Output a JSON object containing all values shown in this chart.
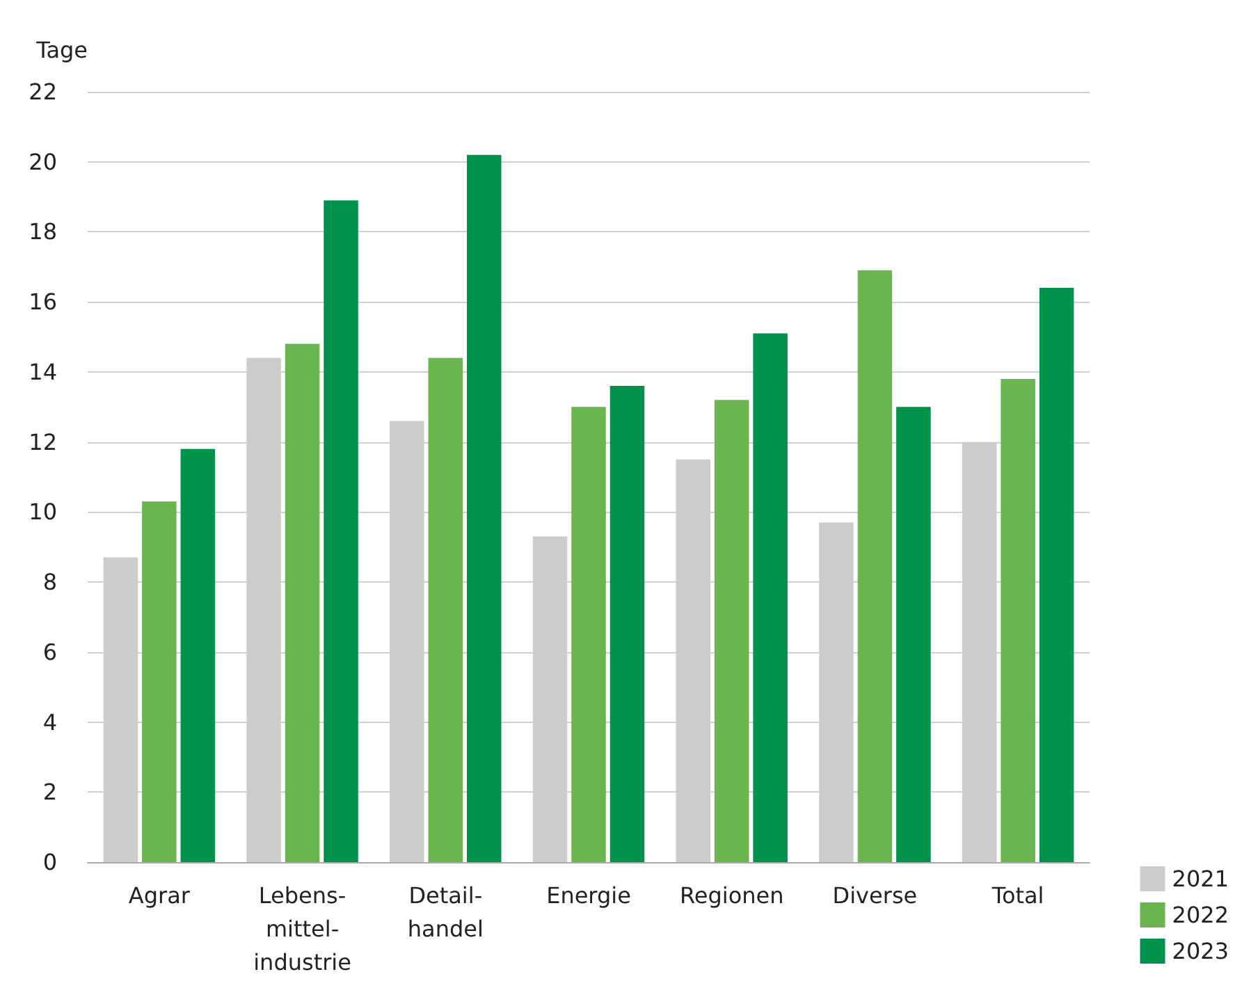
{
  "chart_data": {
    "type": "bar",
    "ylabel": "Tage",
    "categories": [
      "Agrar",
      "Lebens-\nmittel-\nindustrie",
      "Detail-\nhandel",
      "Energie",
      "Regionen",
      "Diverse",
      "Total"
    ],
    "series": [
      {
        "name": "2021",
        "color": "#cccccc",
        "values": [
          8.7,
          14.4,
          12.6,
          9.3,
          11.5,
          9.7,
          12.0
        ]
      },
      {
        "name": "2022",
        "color": "#6ab550",
        "values": [
          10.3,
          14.8,
          14.4,
          13.0,
          13.2,
          16.9,
          13.8
        ]
      },
      {
        "name": "2023",
        "color": "#00914c",
        "values": [
          11.8,
          18.9,
          20.2,
          13.6,
          15.1,
          13.0,
          16.4
        ]
      }
    ],
    "ylim": [
      0,
      22
    ],
    "yticks": [
      0,
      2,
      4,
      6,
      8,
      10,
      12,
      14,
      16,
      18,
      20,
      22
    ],
    "grid": "y",
    "legend": "bottom right"
  }
}
